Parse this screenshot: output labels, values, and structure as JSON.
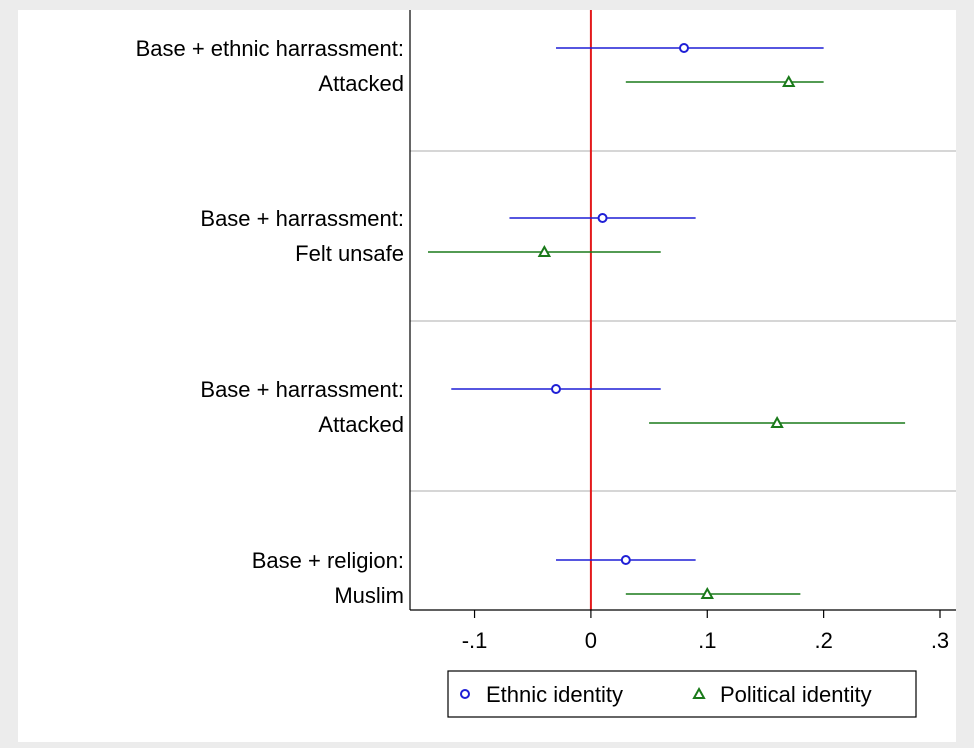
{
  "colors": {
    "background": "#ececec",
    "plot_background": "#ffffff",
    "reference_line": "#e31a1c",
    "ethnic": "#1f1fd6",
    "political": "#1a7a1a",
    "divider": "#c8c8c8"
  },
  "chart_data": {
    "type": "coefficient-plot",
    "xlim": [
      -0.155,
      0.31
    ],
    "x_ticks": [
      {
        "value": -0.1,
        "label": "-.1"
      },
      {
        "value": 0,
        "label": "0"
      },
      {
        "value": 0.1,
        "label": ".1"
      },
      {
        "value": 0.2,
        "label": ".2"
      },
      {
        "value": 0.3,
        "label": ".3"
      }
    ],
    "reference_line": 0,
    "grid": false,
    "legend_position": "bottom",
    "groups": [
      {
        "label_line1": "Base + ethnic harrassment:",
        "label_line2": "Attacked",
        "estimates": [
          {
            "series": "Ethnic identity",
            "estimate": 0.08,
            "lower": -0.03,
            "upper": 0.2
          },
          {
            "series": "Political identity",
            "estimate": 0.17,
            "lower": 0.03,
            "upper": 0.2
          }
        ]
      },
      {
        "label_line1": "Base + harrassment:",
        "label_line2": "Felt unsafe",
        "estimates": [
          {
            "series": "Ethnic identity",
            "estimate": 0.01,
            "lower": -0.07,
            "upper": 0.09
          },
          {
            "series": "Political identity",
            "estimate": -0.04,
            "lower": -0.14,
            "upper": 0.06
          }
        ]
      },
      {
        "label_line1": "Base + harrassment:",
        "label_line2": "Attacked",
        "estimates": [
          {
            "series": "Ethnic identity",
            "estimate": -0.03,
            "lower": -0.12,
            "upper": 0.06
          },
          {
            "series": "Political identity",
            "estimate": 0.16,
            "lower": 0.05,
            "upper": 0.27
          }
        ]
      },
      {
        "label_line1": "Base + religion:",
        "label_line2": "Muslim",
        "estimates": [
          {
            "series": "Ethnic identity",
            "estimate": 0.03,
            "lower": -0.03,
            "upper": 0.09
          },
          {
            "series": "Political identity",
            "estimate": 0.1,
            "lower": 0.03,
            "upper": 0.18
          }
        ]
      }
    ],
    "series": [
      {
        "name": "Ethnic identity",
        "marker": "circle",
        "color": "#1f1fd6"
      },
      {
        "name": "Political identity",
        "marker": "triangle",
        "color": "#1a7a1a"
      }
    ]
  }
}
